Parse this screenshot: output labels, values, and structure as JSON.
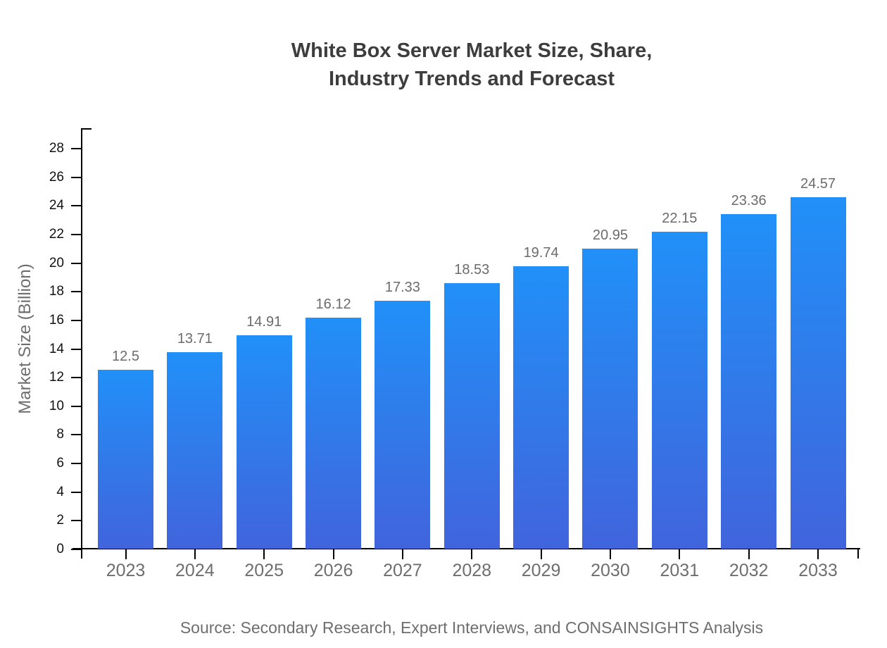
{
  "title": {
    "line1": "White Box Server Market Size, Share,",
    "line2": "Industry Trends and Forecast"
  },
  "source": "Source: Secondary Research, Expert Interviews, and CONSAINSIGHTS Analysis",
  "colors": {
    "bar_gradient_top": "#2190f8",
    "bar_gradient_bottom": "#4164dc",
    "axis": "#000000",
    "title_text": "#3d3d3d",
    "muted_text": "#6e6e6e",
    "ytick_text": "#111111"
  },
  "chart_data": {
    "type": "bar",
    "title": "White Box Server Market Size, Share, Industry Trends and Forecast",
    "categories": [
      "2023",
      "2024",
      "2025",
      "2026",
      "2027",
      "2028",
      "2029",
      "2030",
      "2031",
      "2032",
      "2033"
    ],
    "values": [
      12.5,
      13.71,
      14.91,
      16.12,
      17.33,
      18.53,
      19.74,
      20.95,
      22.15,
      23.36,
      24.57
    ],
    "xlabel": "",
    "ylabel": "Market Size (Billion)",
    "ylim": [
      0,
      28
    ],
    "ytick_step": 2,
    "grid": false,
    "legend": "none",
    "data_labels": true
  }
}
